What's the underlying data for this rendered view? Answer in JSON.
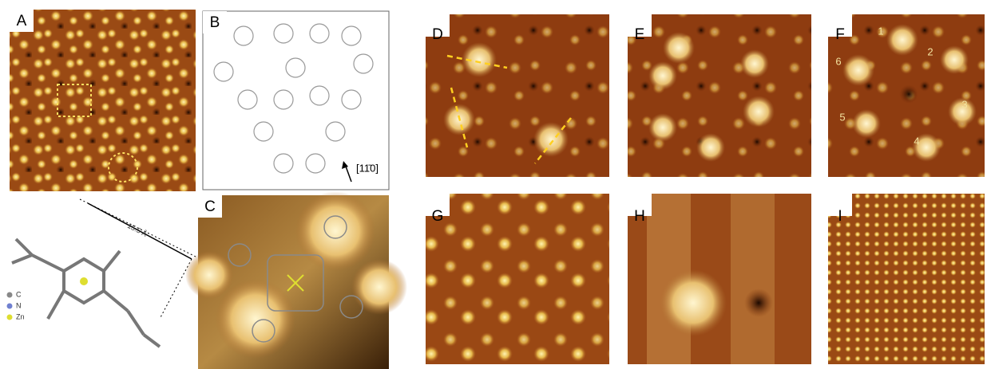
{
  "panels": {
    "A": "A",
    "B": "B",
    "C": "C",
    "D": "D",
    "E": "E",
    "F": "F",
    "G": "G",
    "H": "H",
    "I": "I"
  },
  "molecule": {
    "dimension": "15.5 Å",
    "legend": [
      "C",
      "N",
      "Zn"
    ]
  },
  "direction": "[11̄0]",
  "f_numbers": [
    "1",
    "2",
    "3",
    "4",
    "5",
    "6"
  ]
}
